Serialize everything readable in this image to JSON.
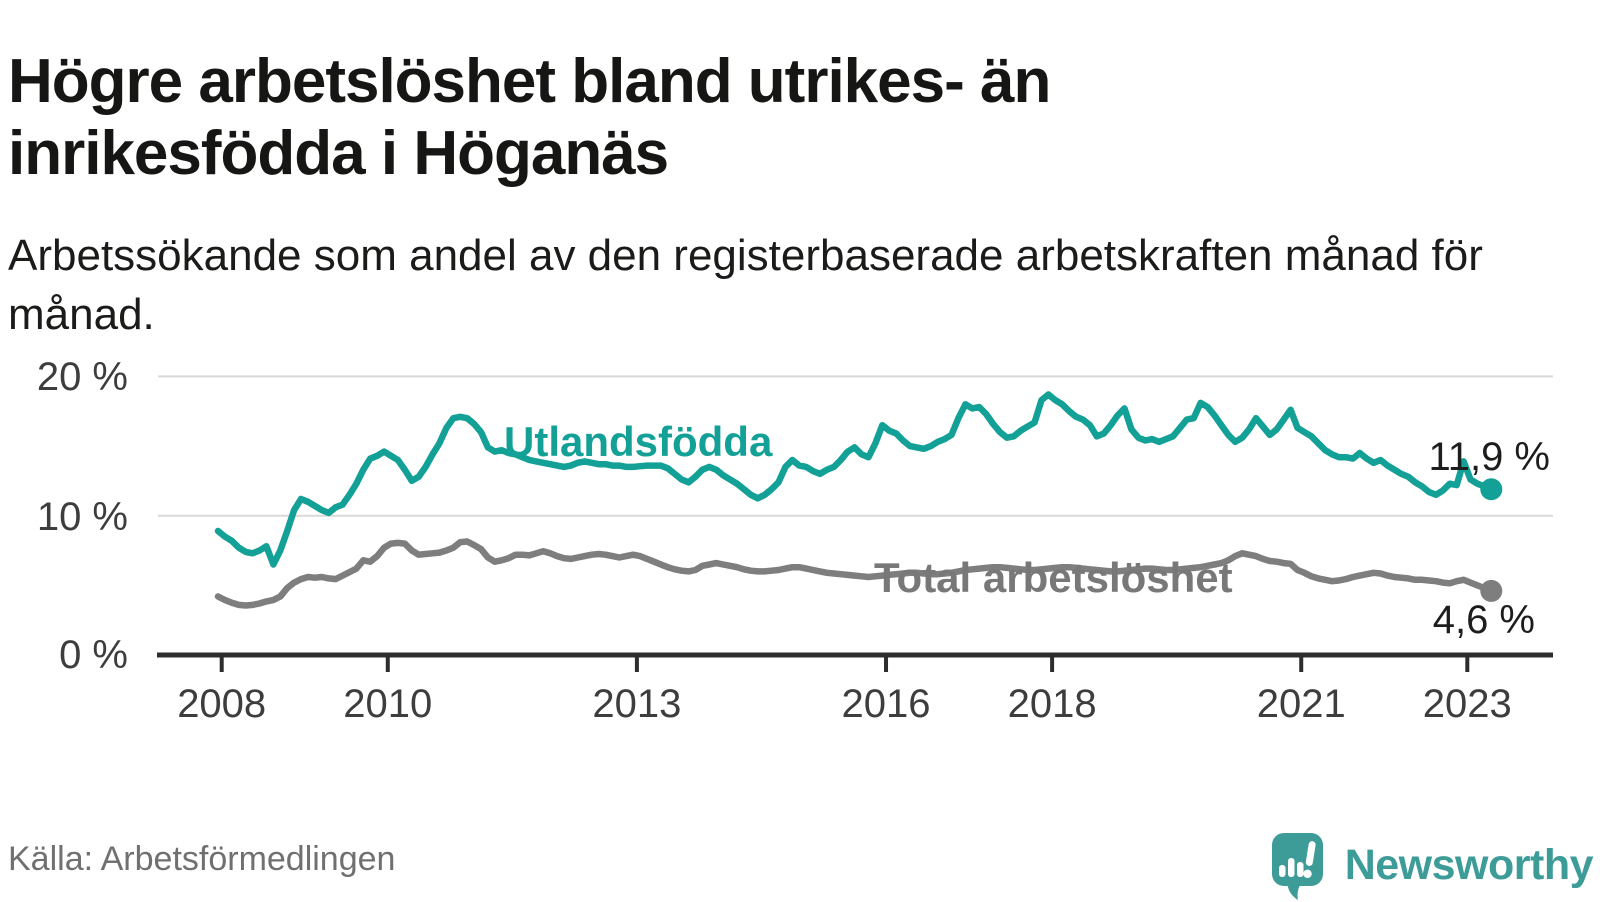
{
  "page": {
    "brand": "Newsworthy"
  },
  "chart_data": {
    "type": "line",
    "title": "Högre arbetslöshet bland utrikes- än inrikesfödda i Höganäs",
    "subtitle": "Arbetssökande som andel av den registerbaserade arbetskraften månad för månad.",
    "source": "Källa: Arbetsförmedlingen",
    "unit": "%",
    "grid": "horizontal-only",
    "x_axis": {
      "start_month": "2008-01",
      "end_month": "2023-05",
      "tick_years": [
        2008,
        2010,
        2013,
        2016,
        2018,
        2021,
        2023
      ]
    },
    "y_axis": {
      "min": 0,
      "max": 21.5,
      "ticks": [
        {
          "value": 0,
          "label": "0 %"
        },
        {
          "value": 10,
          "label": "10 %"
        },
        {
          "value": 20,
          "label": "20 %"
        }
      ]
    },
    "series": [
      {
        "name": "Utlandsfödda",
        "color": "#13a096",
        "last_value": 11.9,
        "last_label": "11,9 %",
        "values": [
          8.9,
          8.5,
          8.2,
          7.7,
          7.4,
          7.3,
          7.5,
          7.8,
          6.5,
          7.5,
          8.9,
          10.4,
          11.2,
          11.0,
          10.7,
          10.4,
          10.2,
          10.6,
          10.8,
          11.5,
          12.3,
          13.3,
          14.1,
          14.3,
          14.6,
          14.3,
          14.0,
          13.3,
          12.5,
          12.8,
          13.5,
          14.4,
          15.2,
          16.3,
          17.0,
          17.1,
          17.0,
          16.6,
          16.0,
          14.9,
          14.6,
          14.7,
          14.5,
          14.4,
          14.2,
          14.0,
          13.9,
          13.8,
          13.7,
          13.6,
          13.5,
          13.6,
          13.8,
          13.9,
          13.8,
          13.7,
          13.7,
          13.6,
          13.6,
          13.5,
          13.5,
          13.55,
          13.6,
          13.6,
          13.6,
          13.4,
          13.0,
          12.6,
          12.4,
          12.8,
          13.3,
          13.5,
          13.3,
          12.9,
          12.6,
          12.3,
          11.9,
          11.5,
          11.25,
          11.5,
          11.9,
          12.4,
          13.5,
          14.0,
          13.6,
          13.5,
          13.2,
          13.0,
          13.3,
          13.5,
          14.0,
          14.6,
          14.9,
          14.4,
          14.2,
          15.2,
          16.5,
          16.1,
          15.9,
          15.4,
          15.0,
          14.9,
          14.8,
          15.0,
          15.3,
          15.5,
          15.8,
          17.0,
          18.0,
          17.7,
          17.8,
          17.3,
          16.6,
          16.0,
          15.6,
          15.7,
          16.1,
          16.4,
          16.7,
          18.3,
          18.7,
          18.3,
          18.0,
          17.5,
          17.1,
          16.9,
          16.5,
          15.7,
          15.9,
          16.5,
          17.2,
          17.7,
          16.2,
          15.6,
          15.4,
          15.5,
          15.3,
          15.5,
          15.7,
          16.3,
          16.9,
          17.0,
          18.1,
          17.8,
          17.2,
          16.5,
          15.8,
          15.3,
          15.6,
          16.2,
          17.0,
          16.4,
          15.8,
          16.2,
          16.9,
          17.6,
          16.3,
          16.0,
          15.7,
          15.2,
          14.7,
          14.4,
          14.2,
          14.2,
          14.1,
          14.5,
          14.1,
          13.8,
          14.0,
          13.6,
          13.3,
          13.0,
          12.8,
          12.4,
          12.1,
          11.7,
          11.5,
          11.8,
          12.3,
          12.2,
          13.9,
          12.6,
          12.3,
          12.1,
          11.9
        ]
      },
      {
        "name": "Total arbetslöshet",
        "color": "#7e7e7e",
        "last_value": 4.6,
        "last_label": "4,6 %",
        "values": [
          4.2,
          3.95,
          3.75,
          3.6,
          3.55,
          3.6,
          3.7,
          3.85,
          3.95,
          4.2,
          4.8,
          5.2,
          5.45,
          5.6,
          5.55,
          5.6,
          5.5,
          5.45,
          5.7,
          5.95,
          6.2,
          6.8,
          6.7,
          7.1,
          7.7,
          8.0,
          8.05,
          8.0,
          7.5,
          7.2,
          7.25,
          7.3,
          7.35,
          7.5,
          7.7,
          8.1,
          8.15,
          7.9,
          7.6,
          7.0,
          6.7,
          6.8,
          6.95,
          7.2,
          7.2,
          7.15,
          7.3,
          7.45,
          7.3,
          7.1,
          6.95,
          6.9,
          7.0,
          7.1,
          7.2,
          7.25,
          7.2,
          7.1,
          7.0,
          7.1,
          7.2,
          7.1,
          6.9,
          6.7,
          6.5,
          6.3,
          6.15,
          6.05,
          6.0,
          6.1,
          6.4,
          6.5,
          6.6,
          6.5,
          6.4,
          6.3,
          6.15,
          6.05,
          6.0,
          6.0,
          6.05,
          6.1,
          6.2,
          6.3,
          6.3,
          6.2,
          6.1,
          6.0,
          5.9,
          5.85,
          5.8,
          5.75,
          5.7,
          5.65,
          5.6,
          5.65,
          5.7,
          5.75,
          5.8,
          5.85,
          5.9,
          5.9,
          5.85,
          5.8,
          5.8,
          5.85,
          5.9,
          6.0,
          6.1,
          6.15,
          6.2,
          6.25,
          6.3,
          6.3,
          6.25,
          6.2,
          6.15,
          6.1,
          6.1,
          6.15,
          6.2,
          6.25,
          6.3,
          6.3,
          6.25,
          6.2,
          6.15,
          6.1,
          6.05,
          6.0,
          6.0,
          6.05,
          6.1,
          6.15,
          6.2,
          6.2,
          6.15,
          6.1,
          6.1,
          6.15,
          6.2,
          6.25,
          6.3,
          6.4,
          6.5,
          6.6,
          6.8,
          7.1,
          7.3,
          7.2,
          7.1,
          6.9,
          6.75,
          6.7,
          6.6,
          6.55,
          6.1,
          5.9,
          5.65,
          5.5,
          5.4,
          5.3,
          5.35,
          5.45,
          5.6,
          5.7,
          5.8,
          5.9,
          5.85,
          5.7,
          5.6,
          5.55,
          5.5,
          5.4,
          5.4,
          5.35,
          5.3,
          5.2,
          5.15,
          5.3,
          5.4,
          5.2,
          5.0,
          4.8,
          4.6
        ]
      }
    ]
  }
}
